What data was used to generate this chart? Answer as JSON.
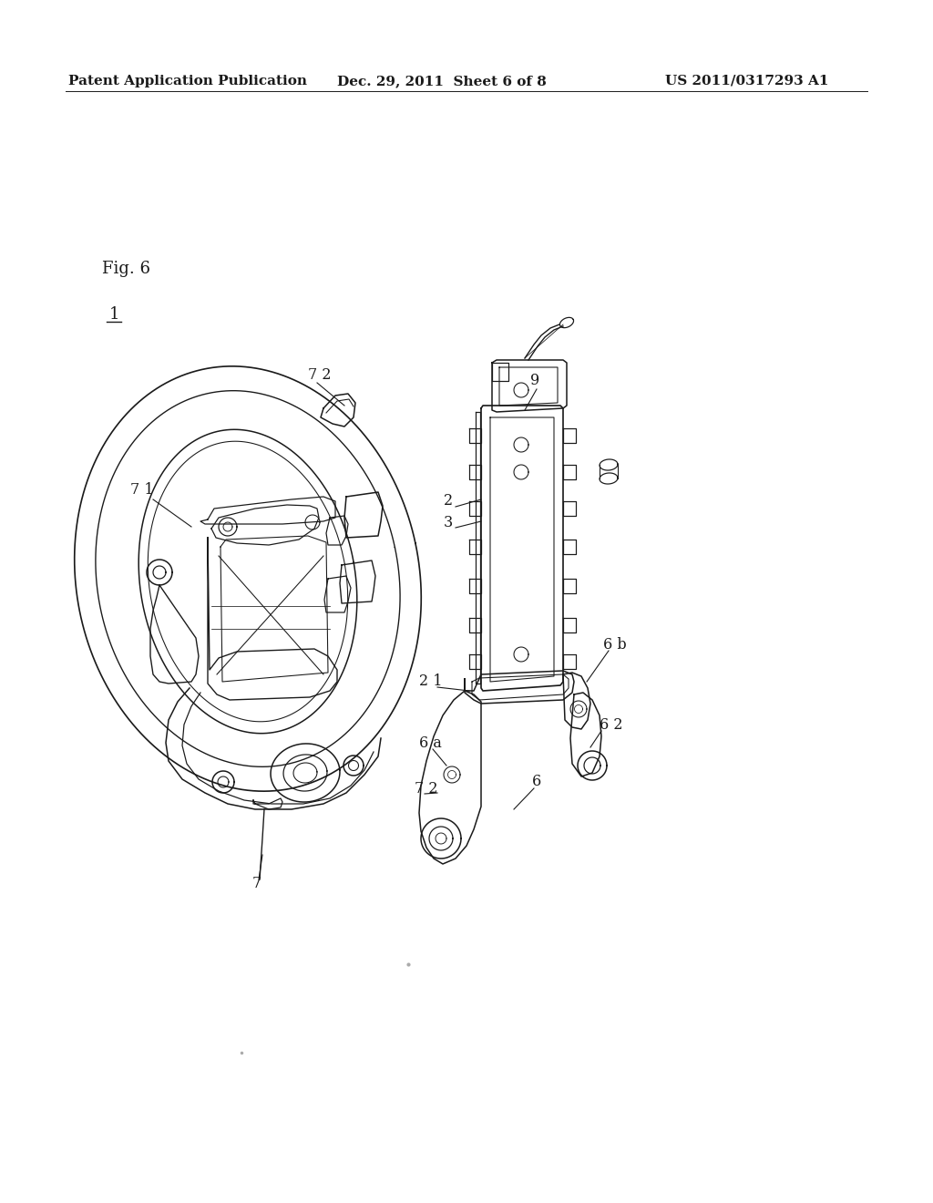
{
  "background_color": "#ffffff",
  "line_color": "#1a1a1a",
  "header_left": "Patent Application Publication",
  "header_center": "Dec. 29, 2011  Sheet 6 of 8",
  "header_right": "US 2011/0317293 A1",
  "header_fontsize": 11,
  "fig_label": "Fig. 6",
  "underline_label": "1",
  "label_fontsize": 11.5,
  "fig_label_fontsize": 13
}
